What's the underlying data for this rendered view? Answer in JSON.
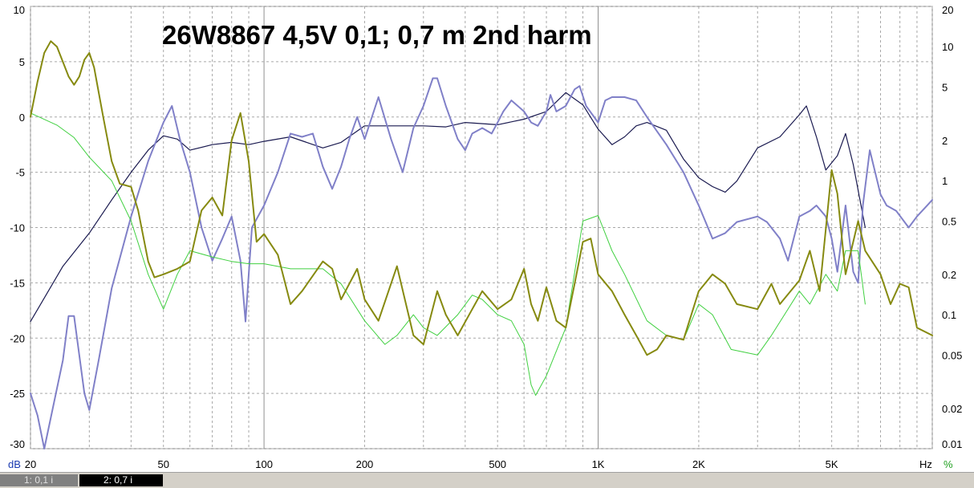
{
  "chart_data": {
    "type": "line",
    "title": "26W8867 4,5V 0,1; 0,7 m  2nd harm",
    "x_scale": "log",
    "xlim": [
      20,
      10000
    ],
    "x_ticks": [
      {
        "v": 20,
        "label": "20"
      },
      {
        "v": 50,
        "label": "50"
      },
      {
        "v": 100,
        "label": "100"
      },
      {
        "v": 200,
        "label": "200"
      },
      {
        "v": 500,
        "label": "500"
      },
      {
        "v": 1000,
        "label": "1K"
      },
      {
        "v": 2000,
        "label": "2K"
      },
      {
        "v": 5000,
        "label": "5K"
      }
    ],
    "x_unit": "Hz",
    "y_left": {
      "unit": "dB",
      "lim": [
        -30,
        10
      ],
      "ticks": [
        10,
        5,
        0,
        -5,
        -10,
        -15,
        -20,
        -25,
        -30
      ]
    },
    "y_right": {
      "unit": "%",
      "scale": "log",
      "lim": [
        0.01,
        20
      ],
      "ticks": [
        {
          "v": 20,
          "label": "20"
        },
        {
          "v": 10,
          "label": "10"
        },
        {
          "v": 5,
          "label": "5"
        },
        {
          "v": 2,
          "label": "2"
        },
        {
          "v": 1,
          "label": "1"
        },
        {
          "v": 0.5,
          "label": "0.5"
        },
        {
          "v": 0.2,
          "label": "0.2"
        },
        {
          "v": 0.1,
          "label": "0.1"
        },
        {
          "v": 0.05,
          "label": "0.05"
        },
        {
          "v": 0.02,
          "label": "0.02"
        },
        {
          "v": 0.01,
          "label": "0.01"
        }
      ]
    },
    "grid": true,
    "series": [
      {
        "id": "response_01",
        "color": "#1a1a50",
        "width": 1.2,
        "axis": "left",
        "points": [
          [
            20,
            -18.5
          ],
          [
            25,
            -13.5
          ],
          [
            30,
            -10.5
          ],
          [
            35,
            -7.5
          ],
          [
            40,
            -5
          ],
          [
            45,
            -3
          ],
          [
            50,
            -1.7
          ],
          [
            55,
            -2
          ],
          [
            60,
            -3
          ],
          [
            70,
            -2.5
          ],
          [
            80,
            -2.3
          ],
          [
            90,
            -2.5
          ],
          [
            100,
            -2.2
          ],
          [
            120,
            -1.8
          ],
          [
            150,
            -2.8
          ],
          [
            170,
            -2.3
          ],
          [
            200,
            -0.8
          ],
          [
            250,
            -0.8
          ],
          [
            300,
            -0.8
          ],
          [
            350,
            -0.9
          ],
          [
            400,
            -0.5
          ],
          [
            500,
            -0.7
          ],
          [
            600,
            -0.2
          ],
          [
            700,
            0.5
          ],
          [
            800,
            2.2
          ],
          [
            900,
            1.1
          ],
          [
            1000,
            -1.1
          ],
          [
            1100,
            -2.5
          ],
          [
            1200,
            -1.8
          ],
          [
            1300,
            -0.8
          ],
          [
            1400,
            -0.5
          ],
          [
            1600,
            -1.2
          ],
          [
            1800,
            -3.8
          ],
          [
            2000,
            -5.5
          ],
          [
            2200,
            -6.3
          ],
          [
            2400,
            -6.8
          ],
          [
            2600,
            -5.8
          ],
          [
            3000,
            -2.8
          ],
          [
            3500,
            -1.8
          ],
          [
            4000,
            0.2
          ],
          [
            4200,
            1
          ],
          [
            4500,
            -1.8
          ],
          [
            4800,
            -4.8
          ],
          [
            5200,
            -3.5
          ],
          [
            5500,
            -1.5
          ],
          [
            5800,
            -4.3
          ],
          [
            6300,
            -10
          ]
        ]
      },
      {
        "id": "response_07",
        "color": "#8080c8",
        "width": 2,
        "axis": "left",
        "points": [
          [
            20,
            -25
          ],
          [
            21,
            -27
          ],
          [
            22,
            -30
          ],
          [
            25,
            -22
          ],
          [
            26,
            -18
          ],
          [
            27,
            -18
          ],
          [
            29,
            -25
          ],
          [
            30,
            -26.5
          ],
          [
            32,
            -22
          ],
          [
            35,
            -15.5
          ],
          [
            40,
            -9
          ],
          [
            45,
            -4
          ],
          [
            50,
            -0.5
          ],
          [
            53,
            1
          ],
          [
            56,
            -2
          ],
          [
            60,
            -5
          ],
          [
            65,
            -10
          ],
          [
            70,
            -13
          ],
          [
            75,
            -11
          ],
          [
            80,
            -9
          ],
          [
            85,
            -13
          ],
          [
            88,
            -18.5
          ],
          [
            92,
            -10
          ],
          [
            100,
            -8
          ],
          [
            110,
            -5
          ],
          [
            120,
            -1.5
          ],
          [
            130,
            -1.8
          ],
          [
            140,
            -1.5
          ],
          [
            150,
            -4.5
          ],
          [
            160,
            -6.5
          ],
          [
            170,
            -4.5
          ],
          [
            180,
            -2
          ],
          [
            190,
            0
          ],
          [
            200,
            -2
          ],
          [
            220,
            1.8
          ],
          [
            240,
            -2
          ],
          [
            260,
            -5
          ],
          [
            280,
            -1
          ],
          [
            300,
            1
          ],
          [
            320,
            3.5
          ],
          [
            330,
            3.5
          ],
          [
            350,
            1
          ],
          [
            380,
            -2
          ],
          [
            400,
            -3
          ],
          [
            420,
            -1.5
          ],
          [
            450,
            -1
          ],
          [
            480,
            -1.5
          ],
          [
            500,
            -0.5
          ],
          [
            520,
            0.5
          ],
          [
            550,
            1.5
          ],
          [
            600,
            0.5
          ],
          [
            630,
            -0.5
          ],
          [
            660,
            -0.8
          ],
          [
            700,
            0.5
          ],
          [
            720,
            2
          ],
          [
            750,
            0.5
          ],
          [
            800,
            1
          ],
          [
            850,
            2.5
          ],
          [
            880,
            2.8
          ],
          [
            920,
            1
          ],
          [
            1000,
            -0.5
          ],
          [
            1050,
            1.5
          ],
          [
            1100,
            1.8
          ],
          [
            1200,
            1.8
          ],
          [
            1300,
            1.5
          ],
          [
            1400,
            0
          ],
          [
            1600,
            -2.5
          ],
          [
            1800,
            -5
          ],
          [
            2000,
            -8
          ],
          [
            2200,
            -11
          ],
          [
            2400,
            -10.5
          ],
          [
            2600,
            -9.5
          ],
          [
            3000,
            -9
          ],
          [
            3200,
            -9.5
          ],
          [
            3500,
            -11
          ],
          [
            3700,
            -13
          ],
          [
            4000,
            -9
          ],
          [
            4300,
            -8.5
          ],
          [
            4500,
            -8
          ],
          [
            4800,
            -9
          ],
          [
            5000,
            -11
          ],
          [
            5200,
            -14
          ],
          [
            5500,
            -8
          ],
          [
            5800,
            -14
          ],
          [
            6000,
            -15
          ],
          [
            6200,
            -8
          ],
          [
            6500,
            -3
          ],
          [
            7000,
            -7
          ],
          [
            7300,
            -8
          ],
          [
            7800,
            -8.5
          ],
          [
            8500,
            -10
          ],
          [
            9000,
            -9
          ],
          [
            10000,
            -7.5
          ]
        ]
      },
      {
        "id": "h2_01",
        "color": "#40d040",
        "width": 1,
        "axis": "right",
        "points": [
          [
            20,
            3.2
          ],
          [
            24,
            2.6
          ],
          [
            27,
            2.1
          ],
          [
            30,
            1.5
          ],
          [
            35,
            1
          ],
          [
            40,
            0.5
          ],
          [
            45,
            0.2
          ],
          [
            50,
            0.11
          ],
          [
            55,
            0.2
          ],
          [
            60,
            0.3
          ],
          [
            70,
            0.27
          ],
          [
            80,
            0.25
          ],
          [
            90,
            0.24
          ],
          [
            100,
            0.24
          ],
          [
            120,
            0.22
          ],
          [
            150,
            0.22
          ],
          [
            170,
            0.17
          ],
          [
            200,
            0.09
          ],
          [
            230,
            0.06
          ],
          [
            250,
            0.07
          ],
          [
            280,
            0.1
          ],
          [
            300,
            0.08
          ],
          [
            330,
            0.07
          ],
          [
            380,
            0.1
          ],
          [
            420,
            0.14
          ],
          [
            450,
            0.13
          ],
          [
            500,
            0.1
          ],
          [
            550,
            0.09
          ],
          [
            600,
            0.06
          ],
          [
            630,
            0.03
          ],
          [
            650,
            0.025
          ],
          [
            700,
            0.035
          ],
          [
            800,
            0.08
          ],
          [
            900,
            0.5
          ],
          [
            1000,
            0.55
          ],
          [
            1100,
            0.3
          ],
          [
            1200,
            0.2
          ],
          [
            1400,
            0.09
          ],
          [
            1600,
            0.07
          ],
          [
            1800,
            0.065
          ],
          [
            2000,
            0.12
          ],
          [
            2200,
            0.1
          ],
          [
            2500,
            0.055
          ],
          [
            3000,
            0.05
          ],
          [
            3300,
            0.07
          ],
          [
            4000,
            0.15
          ],
          [
            4300,
            0.12
          ],
          [
            4800,
            0.2
          ],
          [
            5200,
            0.15
          ],
          [
            5500,
            0.3
          ],
          [
            6000,
            0.3
          ],
          [
            6300,
            0.12
          ]
        ]
      },
      {
        "id": "h2_07",
        "color": "#868a10",
        "width": 2,
        "axis": "right",
        "points": [
          [
            20,
            3
          ],
          [
            21,
            5.5
          ],
          [
            22,
            9
          ],
          [
            23,
            11
          ],
          [
            24,
            10
          ],
          [
            26,
            6
          ],
          [
            27,
            5.2
          ],
          [
            28,
            6
          ],
          [
            29,
            8
          ],
          [
            30,
            9
          ],
          [
            31,
            7
          ],
          [
            33,
            3
          ],
          [
            35,
            1.4
          ],
          [
            37,
            0.95
          ],
          [
            40,
            0.9
          ],
          [
            42,
            0.6
          ],
          [
            45,
            0.25
          ],
          [
            47,
            0.19
          ],
          [
            50,
            0.2
          ],
          [
            55,
            0.22
          ],
          [
            60,
            0.25
          ],
          [
            65,
            0.6
          ],
          [
            70,
            0.75
          ],
          [
            75,
            0.55
          ],
          [
            80,
            2
          ],
          [
            85,
            3.2
          ],
          [
            90,
            1.4
          ],
          [
            95,
            0.35
          ],
          [
            100,
            0.4
          ],
          [
            110,
            0.28
          ],
          [
            120,
            0.12
          ],
          [
            130,
            0.15
          ],
          [
            150,
            0.25
          ],
          [
            160,
            0.22
          ],
          [
            170,
            0.13
          ],
          [
            190,
            0.22
          ],
          [
            200,
            0.13
          ],
          [
            220,
            0.09
          ],
          [
            250,
            0.23
          ],
          [
            280,
            0.07
          ],
          [
            300,
            0.06
          ],
          [
            330,
            0.15
          ],
          [
            350,
            0.1
          ],
          [
            380,
            0.07
          ],
          [
            420,
            0.11
          ],
          [
            450,
            0.15
          ],
          [
            500,
            0.11
          ],
          [
            550,
            0.13
          ],
          [
            600,
            0.22
          ],
          [
            630,
            0.12
          ],
          [
            660,
            0.09
          ],
          [
            700,
            0.16
          ],
          [
            750,
            0.09
          ],
          [
            800,
            0.08
          ],
          [
            850,
            0.17
          ],
          [
            900,
            0.35
          ],
          [
            950,
            0.37
          ],
          [
            1000,
            0.2
          ],
          [
            1100,
            0.15
          ],
          [
            1200,
            0.1
          ],
          [
            1300,
            0.07
          ],
          [
            1400,
            0.05
          ],
          [
            1500,
            0.055
          ],
          [
            1600,
            0.07
          ],
          [
            1800,
            0.065
          ],
          [
            2000,
            0.15
          ],
          [
            2200,
            0.2
          ],
          [
            2400,
            0.17
          ],
          [
            2600,
            0.12
          ],
          [
            3000,
            0.11
          ],
          [
            3300,
            0.17
          ],
          [
            3500,
            0.12
          ],
          [
            4000,
            0.18
          ],
          [
            4300,
            0.3
          ],
          [
            4600,
            0.15
          ],
          [
            5000,
            1.2
          ],
          [
            5200,
            0.8
          ],
          [
            5500,
            0.2
          ],
          [
            6000,
            0.5
          ],
          [
            6300,
            0.3
          ],
          [
            7000,
            0.2
          ],
          [
            7500,
            0.12
          ],
          [
            8000,
            0.17
          ],
          [
            8500,
            0.16
          ],
          [
            9000,
            0.08
          ],
          [
            10000,
            0.07
          ]
        ]
      }
    ]
  },
  "axis_units": {
    "left": "dB",
    "bottom": "Hz",
    "right": "%"
  },
  "tabs": [
    {
      "label": "1: 0,1 i",
      "active": false
    },
    {
      "label": "2: 0,7 i",
      "active": true
    }
  ]
}
